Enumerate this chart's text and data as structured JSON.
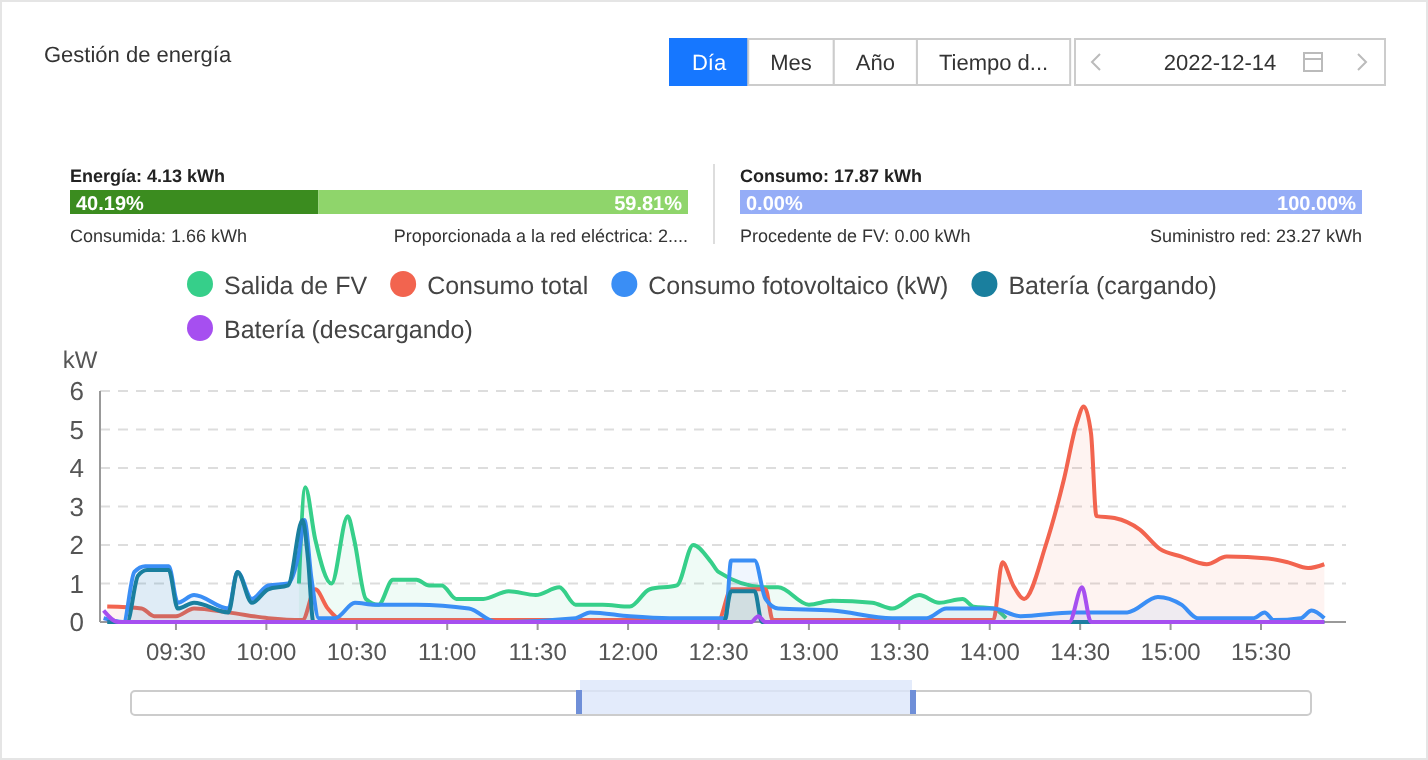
{
  "chart_data": [
    {
      "type": "other",
      "title": "Gestión de energía",
      "annotations": [
        "Día",
        "Mes",
        "Año",
        "Tiempo d...",
        "2022-12-14"
      ]
    },
    {
      "type": "bar",
      "orientation": "horizontal",
      "stacked": true,
      "title": "Energía: 4.13 kWh",
      "categories": [
        null
      ],
      "series": [
        {
          "color": "#3b8c1f",
          "values": [
            40.19
          ],
          "value_labels": [
            "40.19%"
          ]
        },
        {
          "color": "#8fd56b",
          "values": [
            59.81
          ],
          "value_labels": [
            "59.81%"
          ]
        }
      ],
      "annotations": [
        "Consumida: 1.66 kWh",
        "Proporcionada a la red eléctrica: 2...."
      ]
    },
    {
      "type": "other",
      "title": "Consumo: 17.87 kWh",
      "annotations": [
        "0.00%",
        "100.00%",
        "Procedente de FV: 0.00 kWh",
        "Suministro red: 23.27 kWh"
      ]
    },
    {
      "type": "line",
      "ylabel": "kW",
      "xlim": [
        9.08,
        15.97
      ],
      "ylim": [
        0,
        6
      ],
      "yticks": [
        0,
        1,
        2,
        3,
        4,
        5,
        6
      ],
      "xticks": [
        {
          "value": 9.5,
          "label": "09:30"
        },
        {
          "value": 10,
          "label": "10:00"
        },
        {
          "value": 10.5,
          "label": "10:30"
        },
        {
          "value": 11,
          "label": "11:00"
        },
        {
          "value": 11.5,
          "label": "11:30"
        },
        {
          "value": 12,
          "label": "12:00"
        },
        {
          "value": 12.5,
          "label": "12:30"
        },
        {
          "value": 13,
          "label": "13:00"
        },
        {
          "value": 13.5,
          "label": "13:30"
        },
        {
          "value": 14,
          "label": "14:00"
        },
        {
          "value": 14.5,
          "label": "14:30"
        },
        {
          "value": 15,
          "label": "15:00"
        },
        {
          "value": 15.5,
          "label": "15:30"
        }
      ],
      "grid": "y",
      "legend": "top",
      "marker": "none",
      "line_style": "solid",
      "series": [
        {
          "name": "Salida de FV",
          "type": "area",
          "color": "#36cf8a",
          "x": [
            10.18,
            10.215,
            10.27,
            10.36,
            10.45,
            10.485,
            10.55,
            10.62,
            10.7,
            10.83,
            10.9,
            10.97,
            11.05,
            11.2,
            11.34,
            11.49,
            11.62,
            11.71,
            11.86,
            12.01,
            12.12,
            12.27,
            12.36,
            12.46,
            12.5,
            12.76,
            12.83,
            13.0,
            13.13,
            13.35,
            13.46,
            13.61,
            13.72,
            13.85,
            13.91,
            14.02,
            14.09
          ],
          "values": [
            1.0,
            3.5,
            2.15,
            1.0,
            2.75,
            2.15,
            0.6,
            0.45,
            1.1,
            1.1,
            0.95,
            0.95,
            0.6,
            0.6,
            0.8,
            0.7,
            0.9,
            0.45,
            0.45,
            0.4,
            0.85,
            0.95,
            2.0,
            1.55,
            1.3,
            0.9,
            0.9,
            0.45,
            0.55,
            0.5,
            0.35,
            0.7,
            0.5,
            0.6,
            0.4,
            0.35,
            0.1
          ]
        },
        {
          "name": "Consumo total",
          "type": "area",
          "color": "#f2644f",
          "x": [
            9.12,
            9.31,
            9.38,
            9.5,
            9.6,
            9.79,
            10.01,
            10.2,
            10.27,
            10.34,
            10.42,
            12.5,
            12.57,
            12.76,
            12.8,
            14.02,
            14.07,
            14.13,
            14.19,
            14.31,
            14.41,
            14.48,
            14.52,
            14.56,
            14.59,
            14.69,
            14.83,
            14.94,
            15.06,
            15.2,
            15.31,
            15.54,
            15.65,
            15.76,
            15.85
          ],
          "values": [
            0.4,
            0.35,
            0.15,
            0.15,
            0.35,
            0.25,
            0.1,
            0.05,
            0.85,
            0.35,
            0.05,
            0.05,
            0.85,
            0.85,
            0.05,
            0.05,
            1.55,
            0.95,
            0.6,
            2.0,
            3.7,
            5.15,
            5.6,
            4.9,
            2.75,
            2.7,
            2.4,
            1.9,
            1.7,
            1.5,
            1.7,
            1.65,
            1.55,
            1.4,
            1.5
          ]
        },
        {
          "name": "Consumo fotovoltaico (kW)",
          "type": "area",
          "color": "#3a8ef5",
          "x": [
            9.1,
            9.21,
            9.27,
            9.33,
            9.46,
            9.51,
            9.6,
            9.79,
            9.84,
            9.92,
            10.01,
            10.12,
            10.18,
            10.21,
            10.25,
            10.29,
            10.38,
            10.49,
            10.6,
            10.83,
            11.12,
            11.27,
            11.71,
            11.79,
            12.01,
            12.23,
            12.54,
            12.57,
            12.7,
            12.76,
            12.83,
            13.13,
            13.46,
            13.65,
            13.76,
            14.02,
            14.17,
            14.46,
            14.76,
            14.93,
            15.06,
            15.15,
            15.46,
            15.52,
            15.57,
            15.72,
            15.78,
            15.85
          ],
          "values": [
            0.1,
            0,
            1.3,
            1.45,
            1.45,
            0.5,
            0.7,
            0.35,
            1.3,
            0.6,
            0.95,
            1.0,
            1.8,
            2.65,
            1.1,
            0.1,
            0.1,
            0.5,
            0.45,
            0.45,
            0.35,
            0,
            0.1,
            0.25,
            0.15,
            0.1,
            0.1,
            1.6,
            1.6,
            0.6,
            0.35,
            0.3,
            0.1,
            0.1,
            0.35,
            0.35,
            0.15,
            0.25,
            0.25,
            0.65,
            0.45,
            0.1,
            0.1,
            0.25,
            0.05,
            0.1,
            0.3,
            0.1
          ]
        },
        {
          "name": "Batería (cargando)",
          "type": "area",
          "color": "#1a7f9e",
          "x": [
            9.12,
            9.23,
            9.29,
            9.34,
            9.46,
            9.51,
            9.6,
            9.79,
            9.84,
            9.92,
            10.01,
            10.12,
            10.2,
            10.23,
            10.26,
            12.53,
            12.57,
            12.7,
            12.74,
            15.85
          ],
          "values": [
            0,
            0,
            1.2,
            1.35,
            1.35,
            0.35,
            0.5,
            0.25,
            1.3,
            0.5,
            0.85,
            0.95,
            2.65,
            1.65,
            0,
            0,
            0.8,
            0.8,
            0,
            0
          ]
        },
        {
          "name": "Batería (descargando)",
          "type": "area",
          "color": "#a64ff0",
          "x": [
            9.1,
            9.18,
            12.68,
            12.72,
            12.76,
            14.44,
            14.51,
            14.56,
            15.85
          ],
          "values": [
            0.3,
            0,
            0,
            0.15,
            0,
            0,
            0.9,
            0,
            0
          ]
        }
      ]
    }
  ]
}
